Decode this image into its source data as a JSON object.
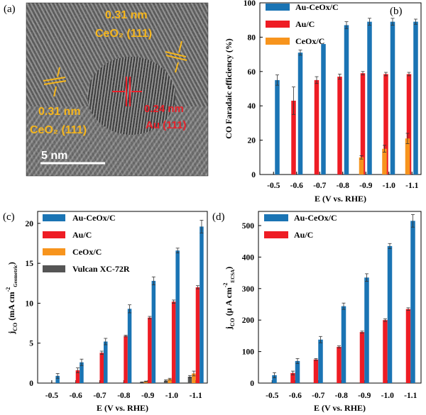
{
  "panels": {
    "a": "(a)",
    "b": "(b)",
    "c": "(c)",
    "d": "(d)"
  },
  "tem": {
    "label_ceo2_top_d": "0.31 nm",
    "label_ceo2_top_plane": "CeO₂ (111)",
    "label_ceo2_left_d": "0.31 nm",
    "label_ceo2_left_plane": "CeO₂ (111)",
    "label_au_d": "0.24 nm",
    "label_au_plane": "Au (111)",
    "scale_bar": "5 nm",
    "colors": {
      "ceo2": "#f5b51b",
      "au": "#e8212a",
      "scale": "#ffffff"
    }
  },
  "chart_data": [
    {
      "panel": "b",
      "type": "bar",
      "ylabel": "CO Faradaic efficiency (%)",
      "xlabel": "E (V vs. RHE)",
      "categories": [
        "-0.5",
        "-0.6",
        "-0.7",
        "-0.8",
        "-0.9",
        "-1.0",
        "-1.1"
      ],
      "ylim": [
        0,
        100
      ],
      "yticks": [
        "0",
        "20",
        "40",
        "60",
        "80",
        "100"
      ],
      "series": [
        {
          "name": "Au-CeOx/C",
          "color": "#1a74b4",
          "values": [
            55,
            71,
            76,
            87,
            89,
            89,
            89
          ],
          "errors": [
            3,
            1.5,
            0,
            2,
            2,
            2,
            1.5
          ]
        },
        {
          "name": "Au/C",
          "color": "#ee1c24",
          "values": [
            null,
            43,
            55,
            57,
            59,
            58.5,
            58.5
          ],
          "errors": [
            0,
            8,
            2,
            1.5,
            1,
            1,
            1
          ]
        },
        {
          "name": "CeOx/C",
          "color": "#f7941d",
          "values": [
            null,
            null,
            null,
            null,
            10,
            15,
            21
          ],
          "errors": [
            0,
            0,
            0,
            0,
            1,
            2,
            3
          ]
        }
      ]
    },
    {
      "panel": "c",
      "type": "bar",
      "ylabel_main": "j",
      "ylabel_sub": "CO",
      "ylabel_rest": " (mA cm",
      "ylabel_sup": "-2",
      "ylabel_sub2": "Geometric",
      "ylabel_end": ")",
      "xlabel": "E (V vs. RHE)",
      "categories": [
        "-0.5",
        "-0.6",
        "-0.7",
        "-0.8",
        "-0.9",
        "-1.0",
        "-1.1"
      ],
      "ylim": [
        0,
        21.5
      ],
      "yticks": [
        "0",
        "5",
        "10",
        "15",
        "20"
      ],
      "series": [
        {
          "name": "Vulcan XC-72R",
          "color": "#555555",
          "values": [
            null,
            null,
            null,
            null,
            0.1,
            0.3,
            0.8
          ],
          "errors": [
            0,
            0,
            0,
            0,
            0.05,
            0.1,
            0.15
          ]
        },
        {
          "name": "CeOx/C",
          "color": "#f7941d",
          "values": [
            null,
            null,
            null,
            null,
            0.2,
            0.5,
            1.2
          ],
          "errors": [
            0,
            0,
            0,
            0,
            0.05,
            0.1,
            0.3
          ]
        },
        {
          "name": "Au/C",
          "color": "#ee1c24",
          "values": [
            null,
            1.6,
            3.8,
            5.9,
            8.2,
            10.2,
            12.0
          ],
          "errors": [
            0,
            0.3,
            0.2,
            0.1,
            0.15,
            0.2,
            0.2
          ]
        },
        {
          "name": "Au-CeOx/C",
          "color": "#1a74b4",
          "values": [
            0.9,
            2.6,
            5.2,
            9.3,
            12.8,
            16.6,
            19.6
          ],
          "errors": [
            0.3,
            0.4,
            0.4,
            0.5,
            0.5,
            0.3,
            0.8
          ]
        }
      ]
    },
    {
      "panel": "d",
      "type": "bar",
      "ylabel_main": "j",
      "ylabel_sub": "CO",
      "ylabel_rest": " (μ A cm",
      "ylabel_sup": "-2",
      "ylabel_sub2": "ECSA",
      "ylabel_end": ")",
      "xlabel": "E (V vs. RHE)",
      "categories": [
        "-0.5",
        "-0.6",
        "-0.7",
        "-0.8",
        "-0.9",
        "-1.0",
        "-1.1"
      ],
      "ylim": [
        0,
        545
      ],
      "yticks": [
        "0",
        "100",
        "200",
        "300",
        "400",
        "500"
      ],
      "series": [
        {
          "name": "Au/C",
          "color": "#ee1c24",
          "values": [
            null,
            32,
            75,
            115,
            162,
            200,
            235
          ],
          "errors": [
            0,
            6,
            3,
            3,
            3,
            4,
            4
          ]
        },
        {
          "name": "Au-CeOx/C",
          "color": "#1a74b4",
          "values": [
            25,
            70,
            138,
            244,
            335,
            435,
            515
          ],
          "errors": [
            8,
            8,
            10,
            10,
            12,
            8,
            20
          ]
        }
      ]
    }
  ]
}
